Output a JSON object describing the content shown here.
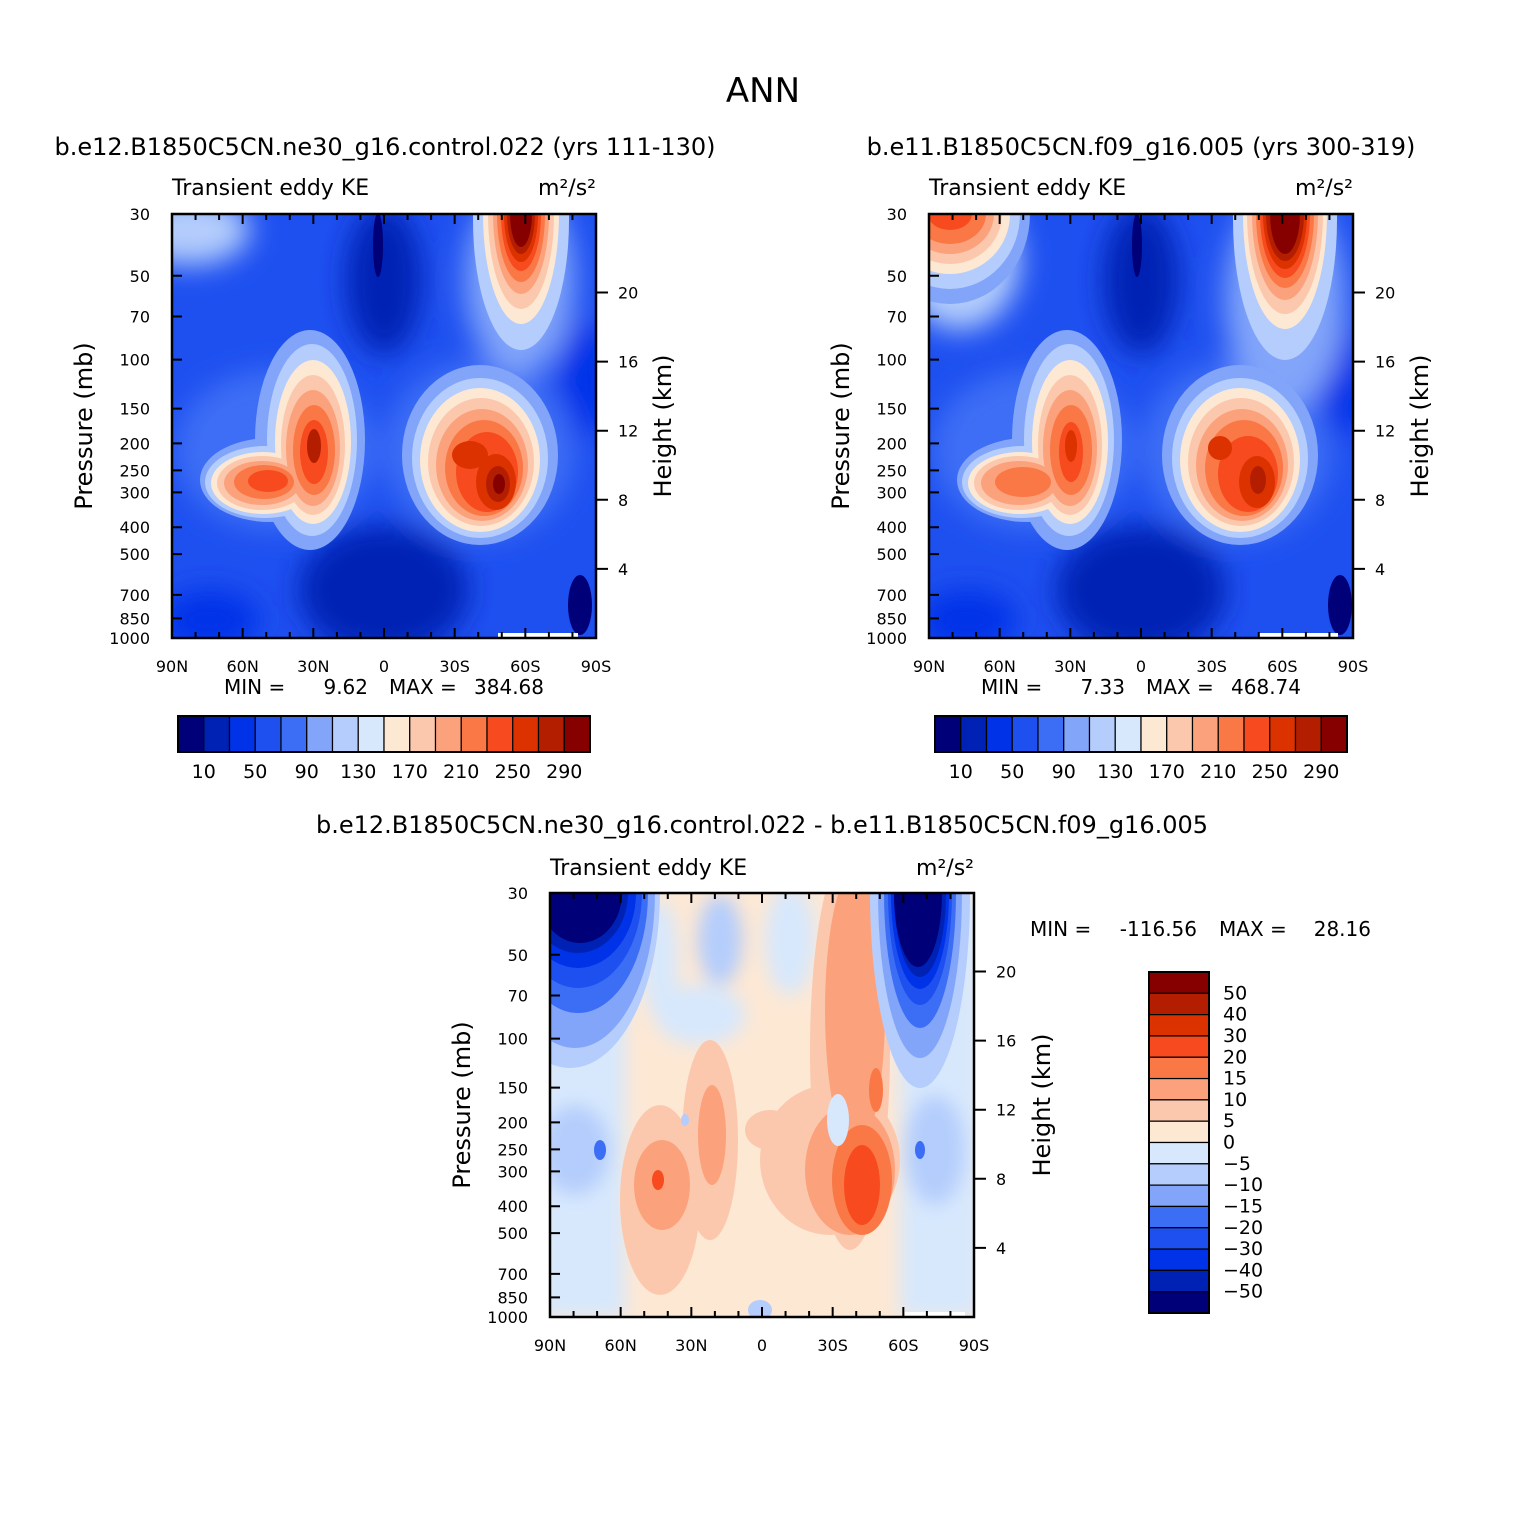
{
  "figure": {
    "title": "ANN"
  },
  "colors": {
    "abs_fill": [
      "#000078",
      "#0022b4",
      "#0032e8",
      "#1e50f0",
      "#3c6ef5",
      "#82a5fa",
      "#b4cdfc",
      "#d7e8fd",
      "#fde8d4",
      "#fcc8ad",
      "#fba27c",
      "#fa7846",
      "#f74a1e",
      "#dc3200",
      "#b41e00",
      "#870000"
    ],
    "diff_fill": [
      "#000078",
      "#0022b4",
      "#0032e8",
      "#1e50f0",
      "#3c6ef5",
      "#82a5fa",
      "#b4cdfc",
      "#d7e8fd",
      "#fde8d4",
      "#fcc8ad",
      "#fba27c",
      "#fa7846",
      "#f74a1e",
      "#dc3200",
      "#b41e00",
      "#870000"
    ]
  },
  "chart_data": [
    {
      "id": "panel_a",
      "type": "heatmap",
      "title": "b.e12.B1850C5CN.ne30_g16.control.022 (yrs 111-130)",
      "left_label": "Transient eddy KE",
      "units": "m²/s²",
      "ylabel": "Pressure (mb)",
      "y2label": "Height (km)",
      "xlim": [
        90,
        -90
      ],
      "xticks": [
        90,
        60,
        30,
        0,
        -30,
        -60,
        -90
      ],
      "xtick_labels": [
        "90N",
        "60N",
        "30N",
        "0",
        "30S",
        "60S",
        "90S"
      ],
      "ylim": [
        1000,
        30
      ],
      "ytick_labels": [
        "30",
        "50",
        "70",
        "100",
        "150",
        "200",
        "250",
        "300",
        "400",
        "500",
        "700",
        "850",
        "1000"
      ],
      "y2tick_labels": [
        "20",
        "16",
        "12",
        "8",
        "4"
      ],
      "min_label": "MIN =",
      "min_value": "9.62",
      "max_label": "MAX =",
      "max_value": "384.68",
      "levels": [
        10,
        30,
        50,
        70,
        90,
        110,
        130,
        150,
        170,
        190,
        210,
        230,
        250,
        270,
        290
      ],
      "colorbar_labels": [
        "10",
        "50",
        "90",
        "130",
        "170",
        "210",
        "250",
        "290"
      ],
      "features": [
        {
          "lat": 30,
          "p": 200,
          "value": 320,
          "shape": "NH subtropical jet core"
        },
        {
          "lat": -47,
          "p": 280,
          "value": 384.68,
          "shape": "SH storm-track jet core"
        },
        {
          "lat": -60,
          "p": 30,
          "value": 300,
          "shape": "SH polar stratospheric maximum"
        },
        {
          "lat": 0,
          "p": 30,
          "value": 9.62,
          "shape": "equatorial stratospheric minimum"
        }
      ]
    },
    {
      "id": "panel_b",
      "type": "heatmap",
      "title": "b.e11.B1850C5CN.f09_g16.005 (yrs 300-319)",
      "left_label": "Transient eddy KE",
      "units": "m²/s²",
      "ylabel": "Pressure (mb)",
      "y2label": "Height (km)",
      "xlim": [
        90,
        -90
      ],
      "xticks": [
        90,
        60,
        30,
        0,
        -30,
        -60,
        -90
      ],
      "xtick_labels": [
        "90N",
        "60N",
        "30N",
        "0",
        "30S",
        "60S",
        "90S"
      ],
      "ylim": [
        1000,
        30
      ],
      "ytick_labels": [
        "30",
        "50",
        "70",
        "100",
        "150",
        "200",
        "250",
        "300",
        "400",
        "500",
        "700",
        "850",
        "1000"
      ],
      "y2tick_labels": [
        "20",
        "16",
        "12",
        "8",
        "4"
      ],
      "min_label": "MIN =",
      "min_value": "7.33",
      "max_label": "MAX =",
      "max_value": "468.74",
      "levels": [
        10,
        30,
        50,
        70,
        90,
        110,
        130,
        150,
        170,
        190,
        210,
        230,
        250,
        270,
        290
      ],
      "colorbar_labels": [
        "10",
        "50",
        "90",
        "130",
        "170",
        "210",
        "250",
        "290"
      ],
      "features": [
        {
          "lat": 30,
          "p": 200,
          "value": 300,
          "shape": "NH subtropical jet core"
        },
        {
          "lat": -50,
          "p": 280,
          "value": 330,
          "shape": "SH storm-track jet core"
        },
        {
          "lat": -62,
          "p": 30,
          "value": 468.74,
          "shape": "SH polar stratospheric maximum"
        },
        {
          "lat": 80,
          "p": 30,
          "value": 230,
          "shape": "NH polar stratospheric maximum"
        }
      ]
    },
    {
      "id": "panel_diff",
      "type": "heatmap",
      "title": "b.e12.B1850C5CN.ne30_g16.control.022 - b.e11.B1850C5CN.f09_g16.005",
      "left_label": "Transient eddy KE",
      "units": "m²/s²",
      "ylabel": "Pressure (mb)",
      "y2label": "Height (km)",
      "xlim": [
        90,
        -90
      ],
      "xticks": [
        90,
        60,
        30,
        0,
        -30,
        -60,
        -90
      ],
      "xtick_labels": [
        "90N",
        "60N",
        "30N",
        "0",
        "30S",
        "60S",
        "90S"
      ],
      "ylim": [
        1000,
        30
      ],
      "ytick_labels": [
        "30",
        "50",
        "70",
        "100",
        "150",
        "200",
        "250",
        "300",
        "400",
        "500",
        "700",
        "850",
        "1000"
      ],
      "y2tick_labels": [
        "20",
        "16",
        "12",
        "8",
        "4"
      ],
      "min_label": "MIN =",
      "min_value": "-116.56",
      "max_label": "MAX =",
      "max_value": "28.16",
      "levels": [
        -50,
        -40,
        -30,
        -20,
        -15,
        -10,
        -5,
        0,
        5,
        10,
        15,
        20,
        30,
        40,
        50
      ],
      "colorbar_labels": [
        "50",
        "40",
        "30",
        "20",
        "15",
        "10",
        "5",
        "0",
        "-5",
        "-10",
        "-15",
        "-20",
        "-30",
        "-40",
        "-50"
      ],
      "features": [
        {
          "lat": -62,
          "p": 30,
          "value": -116.56,
          "shape": "SH polar stratosphere deficit"
        },
        {
          "lat": 80,
          "p": 30,
          "value": -60,
          "shape": "NH polar stratosphere deficit"
        },
        {
          "lat": -45,
          "p": 300,
          "value": 28.16,
          "shape": "SH tropospheric excess"
        },
        {
          "lat": 40,
          "p": 300,
          "value": 22,
          "shape": "NH tropospheric excess"
        }
      ]
    }
  ]
}
